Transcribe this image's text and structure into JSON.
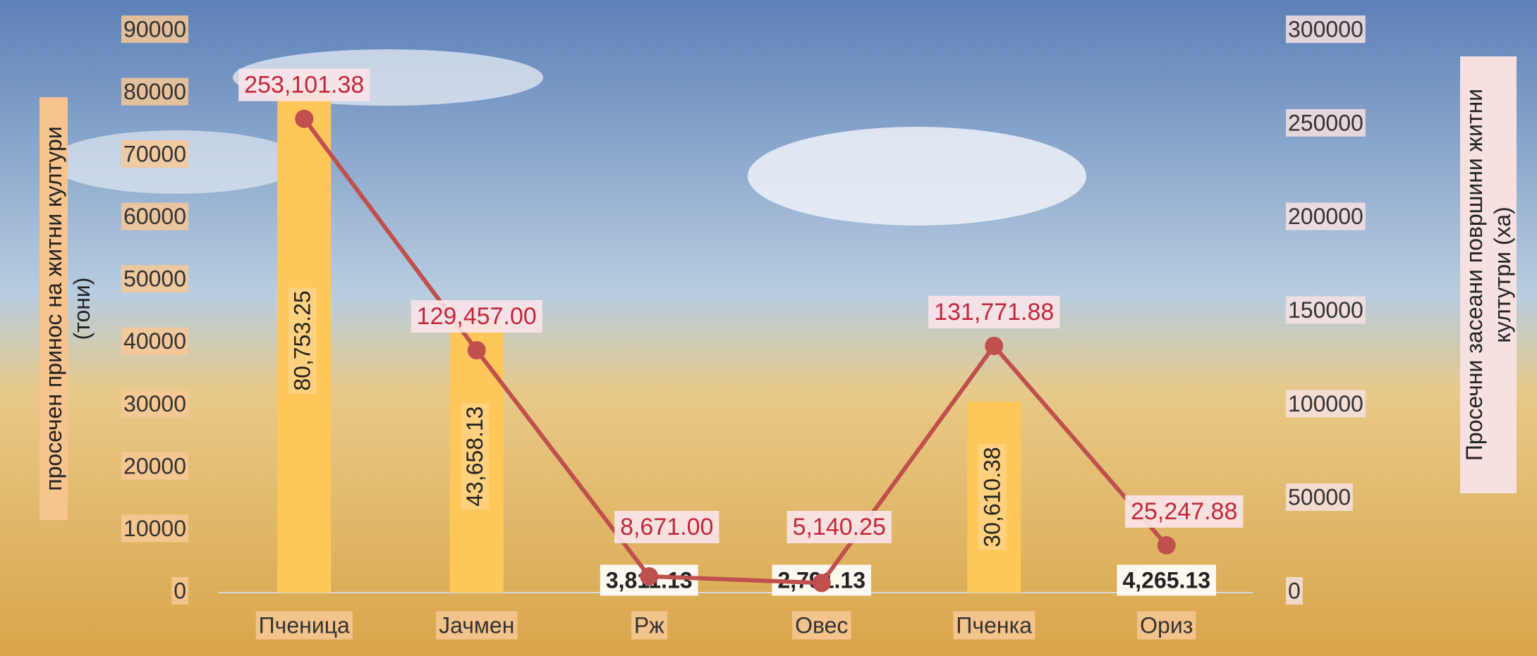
{
  "chart_data": {
    "type": "bar_line",
    "y_label": "просечен принос на житни култури (тони)",
    "y2_label": "Просечни засеани површини житни култутри (ха)",
    "categories": [
      "Пченица",
      "Јачмен",
      "Рж",
      "Овес",
      "Пченка",
      "Ориз"
    ],
    "series": [
      {
        "name": "просечен принос",
        "type": "bar",
        "color": "#ffc65a",
        "values": [
          80753.25,
          43658.13,
          3811.13,
          2791.13,
          30610.38,
          4265.13
        ],
        "value_labels": [
          "80,753.25",
          "43,658.13",
          "3,811.13",
          "2,791.13",
          "30,610.38",
          "4,265.13"
        ]
      },
      {
        "name": "просечни засеани површини",
        "type": "line",
        "axis": "y2",
        "color": "#c0504d",
        "values": [
          253101.38,
          129457.0,
          8671.0,
          5140.25,
          131771.88,
          25247.88
        ],
        "value_labels": [
          "253,101.38",
          "129,457.00",
          "8,671.00",
          "5,140.25",
          "131,771.88",
          "25,247.88"
        ]
      }
    ],
    "ylim": [
      0,
      90000
    ],
    "yticks": [
      0,
      10000,
      20000,
      30000,
      40000,
      50000,
      60000,
      70000,
      80000,
      90000
    ],
    "y2lim": [
      0,
      300000
    ],
    "y2ticks": [
      0,
      50000,
      100000,
      150000,
      200000,
      250000,
      300000
    ]
  }
}
